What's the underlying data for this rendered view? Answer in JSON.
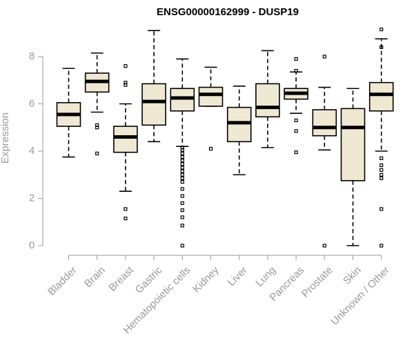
{
  "chart_data": {
    "type": "boxplot",
    "title": "ENSG00000162999 - DUSP19",
    "ylabel": "Expression",
    "xlabel": "",
    "ylim": [
      0,
      9.2
    ],
    "yticks": [
      0,
      2,
      4,
      6,
      8
    ],
    "colors": {
      "box_fill": "#efe8d2",
      "stroke": "#000000",
      "axis": "#999999"
    },
    "categories": [
      "Bladder",
      "Brain",
      "Breast",
      "Gastric",
      "Hematopoietic cells",
      "Kidney",
      "Liver",
      "Lung",
      "Pancreas",
      "Prostate",
      "Skin",
      "Unknown / Other"
    ],
    "boxes": [
      {
        "label": "Bladder",
        "whislo": 3.75,
        "q1": 5.05,
        "med": 5.55,
        "q3": 6.05,
        "whishi": 7.5,
        "fliers": []
      },
      {
        "label": "Brain",
        "whislo": 5.65,
        "q1": 6.5,
        "med": 6.95,
        "q3": 7.3,
        "whishi": 8.15,
        "fliers": [
          3.9,
          5.0,
          5.1
        ]
      },
      {
        "label": "Breast",
        "whislo": 2.3,
        "q1": 3.95,
        "med": 4.6,
        "q3": 5.05,
        "whishi": 6.0,
        "fliers": [
          1.15,
          1.55,
          6.8,
          6.9,
          7.6
        ]
      },
      {
        "label": "Gastric",
        "whislo": 4.4,
        "q1": 5.1,
        "med": 6.1,
        "q3": 6.85,
        "whishi": 9.1,
        "fliers": []
      },
      {
        "label": "Hematopoietic cells",
        "whislo": 4.2,
        "q1": 5.7,
        "med": 6.25,
        "q3": 6.65,
        "whishi": 7.9,
        "fliers": [
          0.0,
          0.85,
          1.2,
          1.5,
          1.8,
          2.1,
          2.4,
          2.7,
          2.85,
          3.0,
          3.15,
          3.3,
          3.45,
          3.6,
          3.75,
          3.9,
          4.05,
          4.15
        ]
      },
      {
        "label": "Kidney",
        "whislo": 5.9,
        "q1": 5.9,
        "med": 6.4,
        "q3": 6.7,
        "whishi": 7.55,
        "fliers": [
          4.1
        ]
      },
      {
        "label": "Liver",
        "whislo": 3.0,
        "q1": 4.4,
        "med": 5.2,
        "q3": 5.85,
        "whishi": 6.75,
        "fliers": []
      },
      {
        "label": "Lung",
        "whislo": 4.15,
        "q1": 5.45,
        "med": 5.85,
        "q3": 6.85,
        "whishi": 8.25,
        "fliers": []
      },
      {
        "label": "Pancreas",
        "whislo": 5.6,
        "q1": 6.2,
        "med": 6.45,
        "q3": 6.65,
        "whishi": 7.35,
        "fliers": [
          3.95,
          4.85,
          5.3,
          7.4,
          7.9
        ]
      },
      {
        "label": "Prostate",
        "whislo": 4.05,
        "q1": 4.65,
        "med": 5.0,
        "q3": 5.75,
        "whishi": 6.7,
        "fliers": [
          0.0,
          8.0
        ]
      },
      {
        "label": "Skin",
        "whislo": 0.0,
        "q1": 2.75,
        "med": 5.0,
        "q3": 5.8,
        "whishi": 6.65,
        "fliers": []
      },
      {
        "label": "Unknown / Other",
        "whislo": 4.0,
        "q1": 5.7,
        "med": 6.4,
        "q3": 6.9,
        "whishi": 8.75,
        "fliers": [
          0.0,
          1.55,
          2.85,
          3.0,
          3.2,
          3.4,
          3.7,
          8.4,
          9.15
        ]
      }
    ]
  }
}
